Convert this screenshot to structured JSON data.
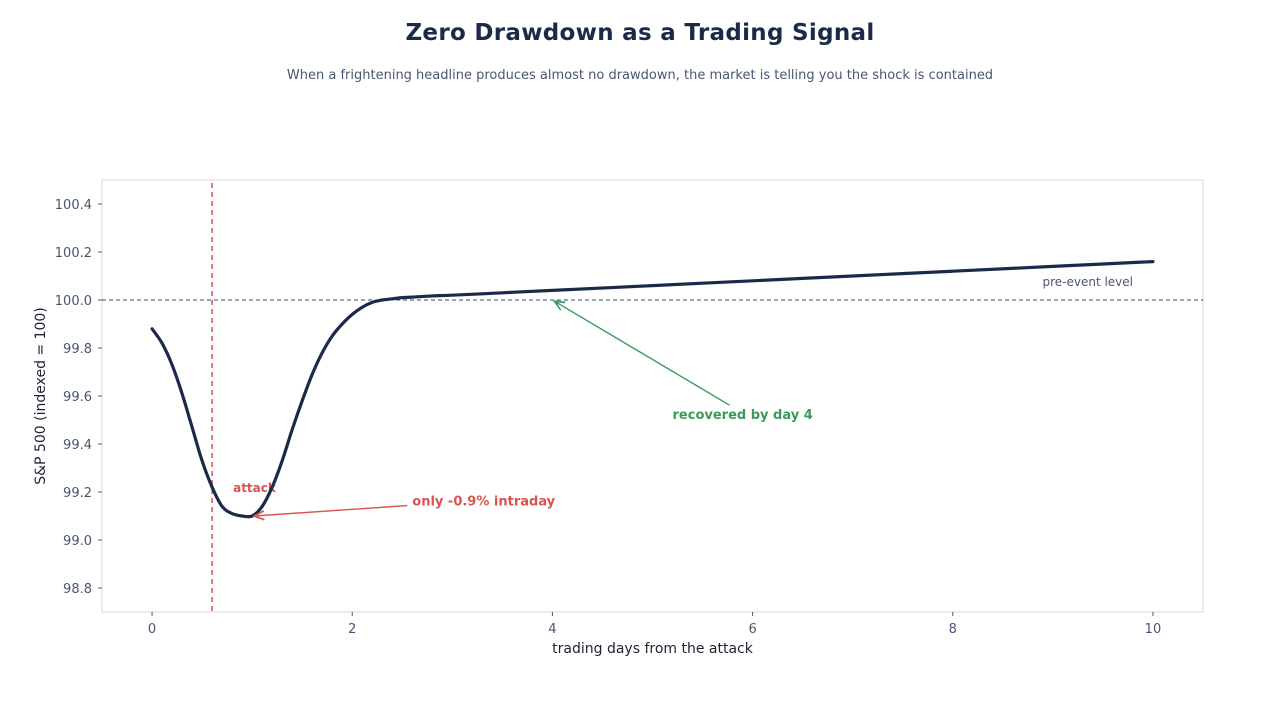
{
  "chart_data": {
    "type": "line",
    "title": "Zero Drawdown as a Trading Signal",
    "subtitle": "When a frightening headline produces almost no drawdown, the market is telling you the shock is contained",
    "xlabel": "trading days from the attack",
    "ylabel": "S&P 500 (indexed = 100)",
    "xlim": [
      -0.5,
      10.5
    ],
    "ylim": [
      98.7,
      100.5
    ],
    "xticks": [
      0,
      2,
      4,
      6,
      8,
      10
    ],
    "yticks": [
      98.8,
      99.0,
      99.2,
      99.4,
      99.6,
      99.8,
      100.0,
      100.2,
      100.4
    ],
    "grid": false,
    "series": [
      {
        "color": "#1c2a4a",
        "x": [
          0,
          0.1,
          0.2,
          0.3,
          0.4,
          0.5,
          0.6,
          0.7,
          0.8,
          0.9,
          1.0,
          1.1,
          1.2,
          1.3,
          1.4,
          1.5,
          1.6,
          1.7,
          1.8,
          1.9,
          2.0,
          2.1,
          2.2,
          2.3,
          2.4,
          2.5,
          2.6,
          2.8,
          3.0,
          3.5,
          4.0,
          5.0,
          6.0,
          7.0,
          8.0,
          9.0,
          10.0
        ],
        "y": [
          99.88,
          99.82,
          99.73,
          99.61,
          99.47,
          99.33,
          99.22,
          99.14,
          99.11,
          99.1,
          99.1,
          99.14,
          99.22,
          99.33,
          99.46,
          99.58,
          99.69,
          99.78,
          99.85,
          99.9,
          99.94,
          99.97,
          99.99,
          100.0,
          100.005,
          100.01,
          100.012,
          100.017,
          100.02,
          100.03,
          100.04,
          100.06,
          100.08,
          100.1,
          100.12,
          100.14,
          100.16
        ]
      }
    ],
    "reference_lines": [
      {
        "axis": "x",
        "value": 0.6,
        "label": "attack",
        "color": "#d9534f"
      },
      {
        "axis": "y",
        "value": 100.0,
        "label": "pre-event level",
        "color": "#3a4766"
      }
    ],
    "annotations": [
      {
        "text": "only -0.9% intraday",
        "target": [
          1.02,
          99.1
        ],
        "text_pos": [
          2.6,
          99.16
        ],
        "color": "#d9534f"
      },
      {
        "text": "recovered by day 4",
        "target": [
          4.02,
          99.995
        ],
        "text_pos": [
          5.2,
          99.52
        ],
        "color": "#3a9a5b"
      }
    ]
  }
}
